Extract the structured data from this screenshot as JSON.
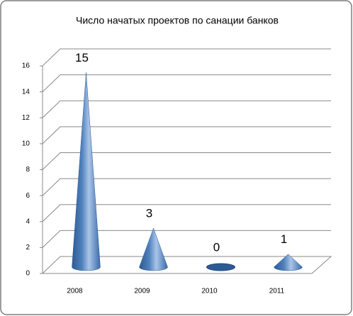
{
  "chart_data": {
    "type": "cone",
    "title": "Число начатых проектов по санации банков",
    "categories": [
      "2008",
      "2009",
      "2010",
      "2011"
    ],
    "values": [
      15,
      3,
      0,
      1
    ],
    "color": "#4f81bd",
    "ylim": [
      0,
      16
    ],
    "yticks": [
      0,
      2,
      4,
      6,
      8,
      10,
      12,
      14,
      16
    ],
    "grid": true
  }
}
